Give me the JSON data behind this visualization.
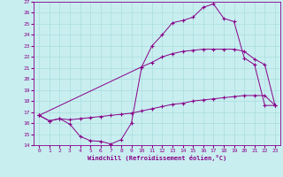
{
  "xlabel": "Windchill (Refroidissement éolien,°C)",
  "bg_color": "#c8eef0",
  "line_color": "#880088",
  "grid_color": "#aadddd",
  "xlim": [
    -0.5,
    23.5
  ],
  "ylim": [
    14,
    27
  ],
  "xticks": [
    0,
    1,
    2,
    3,
    4,
    5,
    6,
    7,
    8,
    9,
    10,
    11,
    12,
    13,
    14,
    15,
    16,
    17,
    18,
    19,
    20,
    21,
    22,
    23
  ],
  "yticks": [
    14,
    15,
    16,
    17,
    18,
    19,
    20,
    21,
    22,
    23,
    24,
    25,
    26,
    27
  ],
  "curve1_x": [
    0,
    1,
    2,
    3,
    4,
    5,
    6,
    7,
    8,
    9,
    10,
    11,
    12,
    13,
    14,
    15,
    16,
    17,
    18,
    19,
    20,
    21,
    22,
    23
  ],
  "curve1_y": [
    16.7,
    16.2,
    16.4,
    15.9,
    14.8,
    14.4,
    14.35,
    14.1,
    14.5,
    16.0,
    21.1,
    23.0,
    24.0,
    25.1,
    25.3,
    25.6,
    26.5,
    26.8,
    25.5,
    25.2,
    21.9,
    21.3,
    17.6,
    17.6
  ],
  "curve2_x": [
    0,
    10,
    11,
    12,
    13,
    14,
    15,
    16,
    17,
    18,
    19,
    20,
    21,
    22,
    23
  ],
  "curve2_y": [
    16.7,
    21.1,
    21.5,
    22.0,
    22.3,
    22.5,
    22.6,
    22.7,
    22.7,
    22.7,
    22.7,
    22.5,
    21.8,
    21.3,
    17.6
  ],
  "curve3_x": [
    0,
    1,
    2,
    3,
    4,
    5,
    6,
    7,
    8,
    9,
    10,
    11,
    12,
    13,
    14,
    15,
    16,
    17,
    18,
    19,
    20,
    21,
    22,
    23
  ],
  "curve3_y": [
    16.7,
    16.2,
    16.4,
    16.3,
    16.4,
    16.5,
    16.6,
    16.7,
    16.8,
    16.9,
    17.1,
    17.3,
    17.5,
    17.7,
    17.8,
    18.0,
    18.1,
    18.2,
    18.3,
    18.4,
    18.5,
    18.5,
    18.5,
    17.6
  ]
}
